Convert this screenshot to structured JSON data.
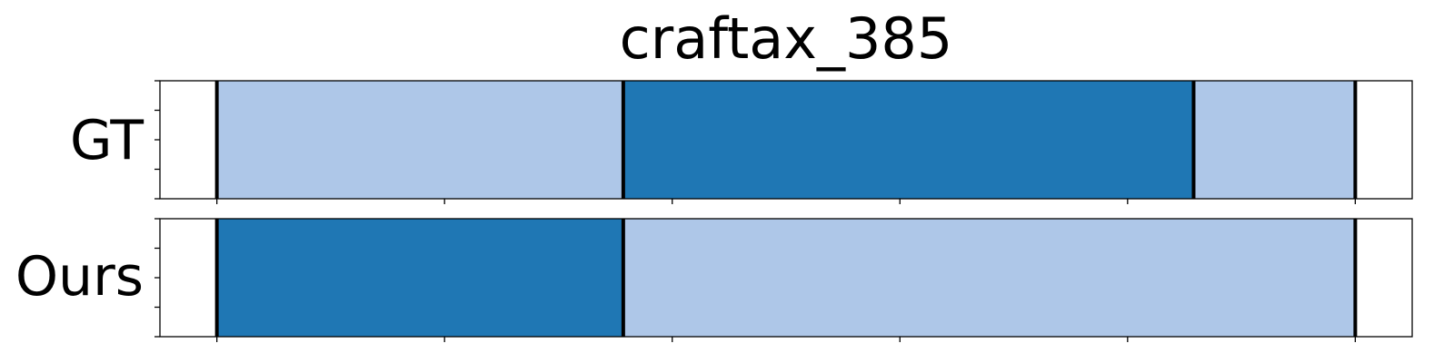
{
  "chart_data": {
    "type": "segmentation-timeline",
    "title": "craftax_385",
    "xlim": [
      -5,
      105
    ],
    "x_ticks": [
      0,
      20,
      40,
      60,
      80,
      100
    ],
    "colors": {
      "light": "#aec7e8",
      "dark": "#1f77b4"
    },
    "rows": [
      {
        "name": "GT",
        "segments": [
          {
            "start": 0,
            "end": 35.7,
            "label": "light"
          },
          {
            "start": 35.7,
            "end": 85.8,
            "label": "dark"
          },
          {
            "start": 85.8,
            "end": 100,
            "label": "light"
          }
        ],
        "boundaries": [
          0,
          35.7,
          85.8,
          100
        ]
      },
      {
        "name": "Ours",
        "segments": [
          {
            "start": 0,
            "end": 35.7,
            "label": "dark"
          },
          {
            "start": 35.7,
            "end": 100,
            "label": "light"
          }
        ],
        "boundaries": [
          0,
          35.7,
          100
        ]
      }
    ]
  }
}
